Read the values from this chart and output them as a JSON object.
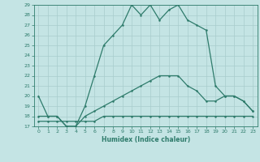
{
  "xlabel": "Humidex (Indice chaleur)",
  "x": [
    0,
    1,
    2,
    3,
    4,
    5,
    6,
    7,
    8,
    9,
    10,
    11,
    12,
    13,
    14,
    15,
    16,
    17,
    18,
    19,
    20,
    21,
    22,
    23
  ],
  "line1": [
    20,
    18,
    18,
    17,
    17,
    19,
    22,
    25,
    26,
    27,
    29,
    28,
    29,
    27.5,
    28.5,
    29,
    27.5,
    27,
    26.5,
    21,
    20,
    20,
    19.5,
    18.5
  ],
  "line2": [
    18,
    18,
    18,
    17,
    17,
    18,
    18.5,
    19,
    19.5,
    20,
    20.5,
    21,
    21.5,
    22,
    22,
    22,
    21,
    20.5,
    19.5,
    19.5,
    20,
    20,
    19.5,
    18.5
  ],
  "line3": [
    17.5,
    17.5,
    17.5,
    17.5,
    17.5,
    17.5,
    17.5,
    18,
    18,
    18,
    18,
    18,
    18,
    18,
    18,
    18,
    18,
    18,
    18,
    18,
    18,
    18,
    18,
    18
  ],
  "line_color": "#2e7b6b",
  "bg_color": "#c4e4e4",
  "grid_color": "#a8cccc",
  "ylim": [
    17,
    29
  ],
  "xlim": [
    -0.5,
    23.5
  ],
  "yticks": [
    17,
    18,
    19,
    20,
    21,
    22,
    23,
    24,
    25,
    26,
    27,
    28,
    29
  ],
  "xticks": [
    0,
    1,
    2,
    3,
    4,
    5,
    6,
    7,
    8,
    9,
    10,
    11,
    12,
    13,
    14,
    15,
    16,
    17,
    18,
    19,
    20,
    21,
    22,
    23
  ]
}
